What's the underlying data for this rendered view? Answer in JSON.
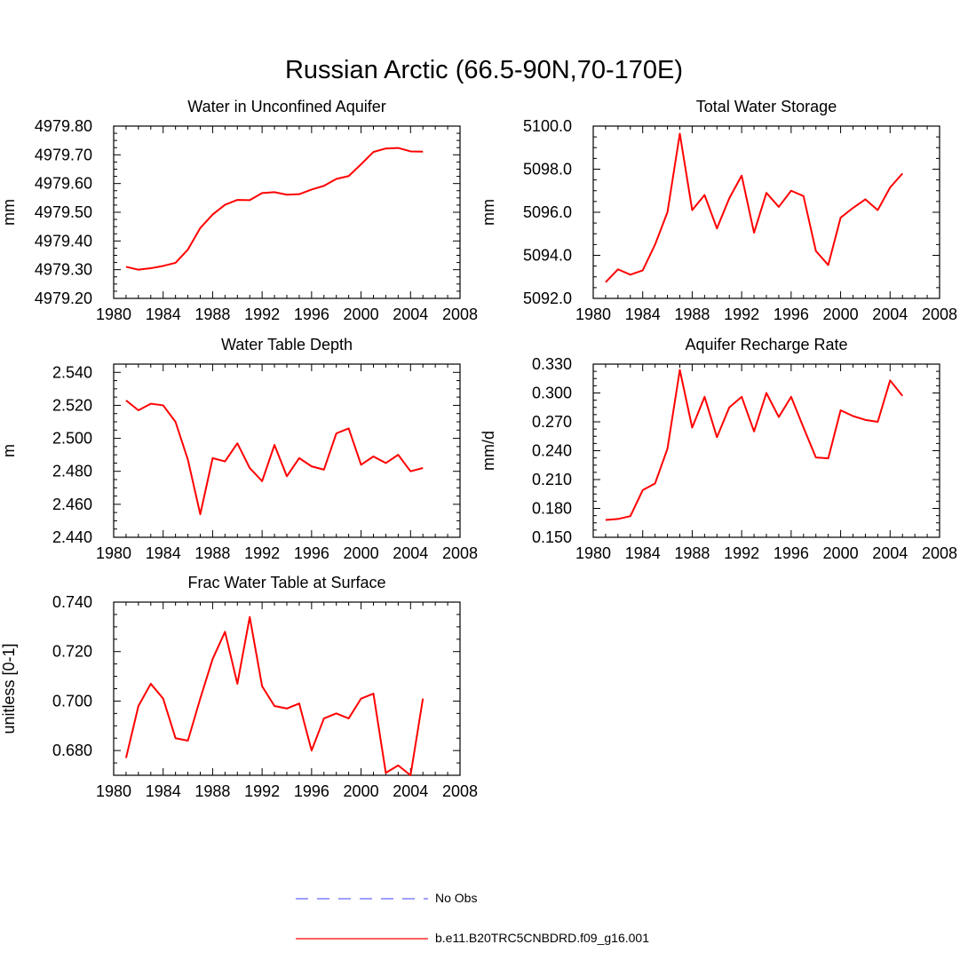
{
  "figure_title": "Russian Arctic (66.5-90N,70-170E)",
  "colors": {
    "model": "#ff0000",
    "obs": "#6666ff",
    "axis": "#000000"
  },
  "legend": {
    "obs_label": "No Obs",
    "model_label": "b.e11.B20TRC5CNBDRD.f09_g16.001"
  },
  "chart_data": [
    {
      "type": "line",
      "title": "Water in Unconfined Aquifer",
      "ylabel": "mm",
      "xlabel": "",
      "xlim": [
        1980,
        2008
      ],
      "ylim": [
        4979.2,
        4979.8
      ],
      "x_ticks": [
        "1980",
        "1984",
        "1988",
        "1992",
        "1996",
        "2000",
        "2004",
        "2008"
      ],
      "y_ticks": [
        "4979.20",
        "4979.30",
        "4979.40",
        "4979.50",
        "4979.60",
        "4979.70",
        "4979.80"
      ],
      "x": [
        1981,
        1982,
        1983,
        1984,
        1985,
        1986,
        1987,
        1988,
        1989,
        1990,
        1991,
        1992,
        1993,
        1994,
        1995,
        1996,
        1997,
        1998,
        1999,
        2000,
        2001,
        2002,
        2003,
        2004,
        2005
      ],
      "series": [
        {
          "name": "b.e11.B20TRC5CNBDRD.f09_g16.001",
          "values": [
            4979.31,
            4979.3,
            4979.305,
            4979.313,
            4979.324,
            4979.37,
            4979.445,
            4979.492,
            4979.526,
            4979.543,
            4979.542,
            4979.567,
            4979.57,
            4979.561,
            4979.563,
            4979.579,
            4979.592,
            4979.616,
            4979.626,
            4979.667,
            4979.71,
            4979.722,
            4979.724,
            4979.712,
            4979.711
          ]
        }
      ]
    },
    {
      "type": "line",
      "title": "Total Water Storage",
      "ylabel": "mm",
      "xlabel": "",
      "xlim": [
        1980,
        2008
      ],
      "ylim": [
        5092.0,
        5100.0
      ],
      "x_ticks": [
        "1980",
        "1984",
        "1988",
        "1992",
        "1996",
        "2000",
        "2004",
        "2008"
      ],
      "y_ticks": [
        "5092.0",
        "5094.0",
        "5096.0",
        "5098.0",
        "5100.0"
      ],
      "x": [
        1981,
        1982,
        1983,
        1984,
        1985,
        1986,
        1987,
        1988,
        1989,
        1990,
        1991,
        1992,
        1993,
        1994,
        1995,
        1996,
        1997,
        1998,
        1999,
        2000,
        2001,
        2002,
        2003,
        2004,
        2005
      ],
      "series": [
        {
          "name": "b.e11.B20TRC5CNBDRD.f09_g16.001",
          "values": [
            5092.75,
            5093.35,
            5093.1,
            5093.3,
            5094.5,
            5096.0,
            5099.65,
            5096.1,
            5096.8,
            5095.25,
            5096.65,
            5097.7,
            5095.05,
            5096.9,
            5096.25,
            5097.0,
            5096.75,
            5094.2,
            5093.55,
            5095.75,
            5096.2,
            5096.6,
            5096.1,
            5097.15,
            5097.8
          ]
        }
      ]
    },
    {
      "type": "line",
      "title": "Water Table Depth",
      "ylabel": "m",
      "xlabel": "",
      "xlim": [
        1980,
        2008
      ],
      "ylim": [
        2.44,
        2.545
      ],
      "x_ticks": [
        "1980",
        "1984",
        "1988",
        "1992",
        "1996",
        "2000",
        "2004",
        "2008"
      ],
      "y_ticks": [
        "2.440",
        "2.460",
        "2.480",
        "2.500",
        "2.520",
        "2.540"
      ],
      "x": [
        1981,
        1982,
        1983,
        1984,
        1985,
        1986,
        1987,
        1988,
        1989,
        1990,
        1991,
        1992,
        1993,
        1994,
        1995,
        1996,
        1997,
        1998,
        1999,
        2000,
        2001,
        2002,
        2003,
        2004,
        2005
      ],
      "series": [
        {
          "name": "b.e11.B20TRC5CNBDRD.f09_g16.001",
          "values": [
            2.523,
            2.517,
            2.521,
            2.52,
            2.51,
            2.487,
            2.454,
            2.488,
            2.486,
            2.497,
            2.482,
            2.474,
            2.496,
            2.477,
            2.488,
            2.483,
            2.481,
            2.503,
            2.506,
            2.484,
            2.489,
            2.485,
            2.49,
            2.48,
            2.482
          ]
        }
      ]
    },
    {
      "type": "line",
      "title": "Aquifer Recharge Rate",
      "ylabel": "mm/d",
      "xlabel": "",
      "xlim": [
        1980,
        2008
      ],
      "ylim": [
        0.15,
        0.33
      ],
      "x_ticks": [
        "1980",
        "1984",
        "1988",
        "1992",
        "1996",
        "2000",
        "2004",
        "2008"
      ],
      "y_ticks": [
        "0.150",
        "0.180",
        "0.210",
        "0.240",
        "0.270",
        "0.300",
        "0.330"
      ],
      "x": [
        1981,
        1982,
        1983,
        1984,
        1985,
        1986,
        1987,
        1988,
        1989,
        1990,
        1991,
        1992,
        1993,
        1994,
        1995,
        1996,
        1997,
        1998,
        1999,
        2000,
        2001,
        2002,
        2003,
        2004,
        2005
      ],
      "series": [
        {
          "name": "b.e11.B20TRC5CNBDRD.f09_g16.001",
          "values": [
            0.168,
            0.169,
            0.172,
            0.199,
            0.206,
            0.242,
            0.324,
            0.264,
            0.296,
            0.254,
            0.285,
            0.296,
            0.26,
            0.3,
            0.275,
            0.296,
            0.264,
            0.233,
            0.232,
            0.282,
            0.276,
            0.272,
            0.27,
            0.313,
            0.297
          ]
        }
      ]
    },
    {
      "type": "line",
      "title": "Frac Water Table at Surface",
      "ylabel": "unitless [0-1]",
      "xlabel": "",
      "xlim": [
        1980,
        2008
      ],
      "ylim": [
        0.67,
        0.74
      ],
      "x_ticks": [
        "1980",
        "1984",
        "1988",
        "1992",
        "1996",
        "2000",
        "2004",
        "2008"
      ],
      "y_ticks": [
        "0.680",
        "0.700",
        "0.720",
        "0.740"
      ],
      "x": [
        1981,
        1982,
        1983,
        1984,
        1985,
        1986,
        1987,
        1988,
        1989,
        1990,
        1991,
        1992,
        1993,
        1994,
        1995,
        1996,
        1997,
        1998,
        1999,
        2000,
        2001,
        2002,
        2003,
        2004,
        2005
      ],
      "series": [
        {
          "name": "b.e11.B20TRC5CNBDRD.f09_g16.001",
          "values": [
            0.677,
            0.698,
            0.707,
            0.701,
            0.685,
            0.684,
            0.701,
            0.717,
            0.728,
            0.707,
            0.734,
            0.706,
            0.698,
            0.697,
            0.699,
            0.68,
            0.693,
            0.695,
            0.693,
            0.701,
            0.703,
            0.671,
            0.674,
            0.67,
            0.701
          ]
        }
      ]
    }
  ]
}
